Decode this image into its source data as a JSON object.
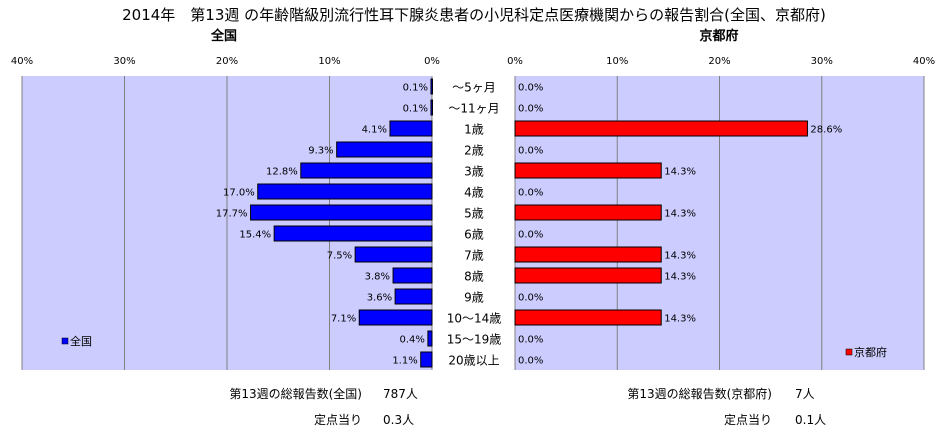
{
  "title": "2014年　第13週 の年齢階級別流行性耳下腺炎患者の小児科定点医療機関からの報告割合(全国、京都府)",
  "chart_data": [
    {
      "type": "bar",
      "orientation": "horizontal",
      "direction": "right-to-left",
      "title": "全国",
      "xlim": [
        0,
        40
      ],
      "xticks": [
        "40%",
        "30%",
        "20%",
        "10%",
        "0%"
      ],
      "categories": [
        "～5ヶ月",
        "～11ヶ月",
        "1歳",
        "2歳",
        "3歳",
        "4歳",
        "5歳",
        "6歳",
        "7歳",
        "8歳",
        "9歳",
        "10～14歳",
        "15～19歳",
        "20歳以上"
      ],
      "series": [
        {
          "name": "全国",
          "color": "#0000ff",
          "values": [
            0.1,
            0.1,
            4.1,
            9.3,
            12.8,
            17.0,
            17.7,
            15.4,
            7.5,
            3.8,
            3.6,
            7.1,
            0.4,
            1.1
          ],
          "labels": [
            "0.1%",
            "0.1%",
            "4.1%",
            "9.3%",
            "12.8%",
            "17.0%",
            "17.7%",
            "15.4%",
            "7.5%",
            "3.8%",
            "3.6%",
            "7.1%",
            "0.4%",
            "1.1%"
          ]
        }
      ],
      "grid": true,
      "legend": "bottom-left"
    },
    {
      "type": "bar",
      "orientation": "horizontal",
      "direction": "left-to-right",
      "title": "京都府",
      "xlim": [
        0,
        40
      ],
      "xticks": [
        "0%",
        "10%",
        "20%",
        "30%",
        "40%"
      ],
      "categories": [
        "～5ヶ月",
        "～11ヶ月",
        "1歳",
        "2歳",
        "3歳",
        "4歳",
        "5歳",
        "6歳",
        "7歳",
        "8歳",
        "9歳",
        "10～14歳",
        "15～19歳",
        "20歳以上"
      ],
      "series": [
        {
          "name": "京都府",
          "color": "#ff0000",
          "values": [
            0.0,
            0.0,
            28.6,
            0.0,
            14.3,
            0.0,
            14.3,
            0.0,
            14.3,
            14.3,
            0.0,
            14.3,
            0.0,
            0.0
          ],
          "labels": [
            "0.0%",
            "0.0%",
            "28.6%",
            "0.0%",
            "14.3%",
            "0.0%",
            "14.3%",
            "0.0%",
            "14.3%",
            "14.3%",
            "0.0%",
            "14.3%",
            "0.0%",
            "0.0%"
          ]
        }
      ],
      "grid": true,
      "legend": "bottom-right"
    }
  ],
  "footer": {
    "national_total_label": "第13週の総報告数(全国)",
    "national_total_value": "787人",
    "national_per_label": "定点当り",
    "national_per_value": "0.3人",
    "kyoto_total_label": "第13週の総報告数(京都府)",
    "kyoto_total_value": "7人",
    "kyoto_per_label": "定点当り",
    "kyoto_per_value": "0.1人"
  },
  "colors": {
    "plot_bg": "#ccccff",
    "national_bar": "#0000ff",
    "kyoto_bar": "#ff0000",
    "grid": "#808080"
  }
}
